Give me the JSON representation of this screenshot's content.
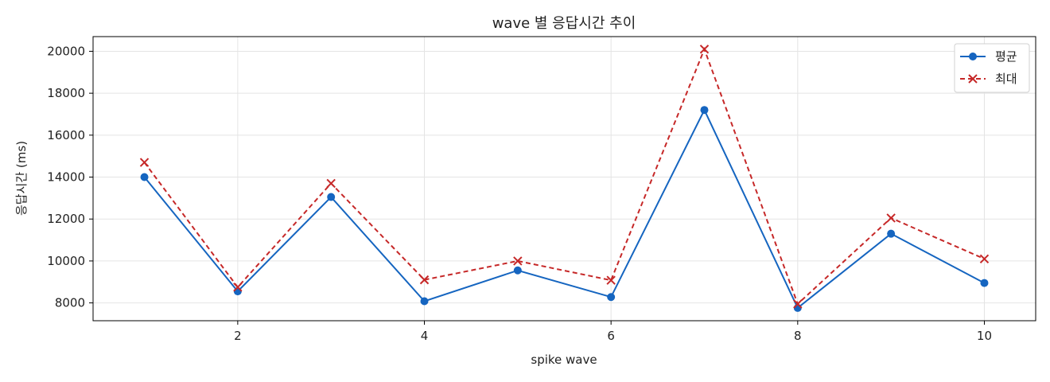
{
  "chart_data": {
    "type": "line",
    "title": "wave 별 응답시간 추이",
    "xlabel": "spike wave",
    "ylabel": "응답시간 (ms)",
    "x": [
      1,
      2,
      3,
      4,
      5,
      6,
      7,
      8,
      9,
      10
    ],
    "xticks": [
      "2",
      "4",
      "6",
      "8",
      "10"
    ],
    "yticks": [
      "8000",
      "10000",
      "12000",
      "14000",
      "16000",
      "18000",
      "20000"
    ],
    "xlim": [
      0.45,
      10.55
    ],
    "ylim": [
      7150,
      20700
    ],
    "grid": true,
    "legend_position": "top-right",
    "series": [
      {
        "name": "평균",
        "color": "#1565c0",
        "marker": "circle",
        "line": "solid",
        "values": [
          14000,
          8550,
          13050,
          8080,
          9550,
          8280,
          17200,
          7760,
          11300,
          8950
        ]
      },
      {
        "name": "최대",
        "color": "#c62828",
        "marker": "x",
        "line": "dashed",
        "values": [
          14700,
          8750,
          13700,
          9100,
          10000,
          9080,
          20100,
          7950,
          12050,
          10100
        ]
      }
    ]
  }
}
